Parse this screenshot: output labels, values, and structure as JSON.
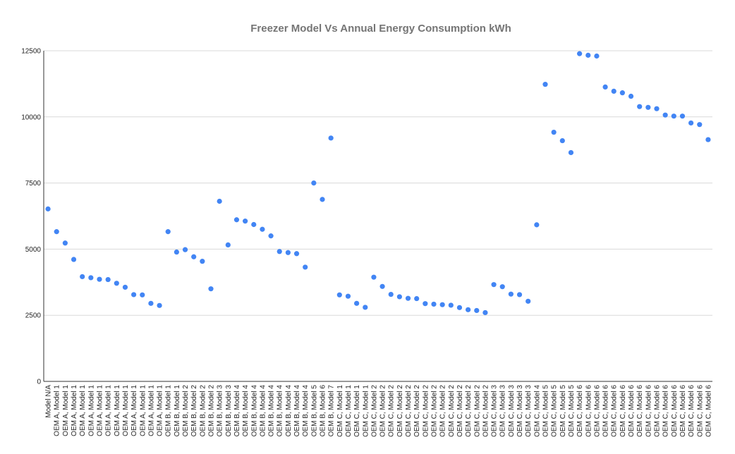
{
  "chart_data": {
    "type": "scatter",
    "title": "Freezer Model Vs Annual Energy Consumption kWh",
    "xlabel": "",
    "ylabel": "",
    "ylim": [
      0,
      12500
    ],
    "yticks": [
      0,
      2500,
      5000,
      7500,
      10000,
      12500
    ],
    "grid": true,
    "legend": "none",
    "point_color": "#4285f4",
    "categories": [
      "Model N/A",
      "OEM A, Model 1",
      "OEM A, Model 1",
      "OEM A, Model 1",
      "OEM A, Model 1",
      "OEM A, Model 1",
      "OEM A, Model 1",
      "OEM A, Model 1",
      "OEM A, Model 1",
      "OEM A, Model 1",
      "OEM A, Model 1",
      "OEM A, Model 1",
      "OEM A, Model 1",
      "OEM A, Model 1",
      "OEM B, Model 1",
      "OEM B, Model 1",
      "OEM B, Model 2",
      "OEM B, Model 2",
      "OEM B, Model 2",
      "OEM B, Model 2",
      "OEM B, Model 3",
      "OEM B, Model 3",
      "OEM B, Model 4",
      "OEM B, Model 4",
      "OEM B, Model 4",
      "OEM B, Model 4",
      "OEM B, Model 4",
      "OEM B, Model 4",
      "OEM B, Model 4",
      "OEM B, Model 4",
      "OEM B, Model 4",
      "OEM B, Model 5",
      "OEM B, Model 6",
      "OEM B, Model 7",
      "OEM C, Model 1",
      "OEM C, Model 1",
      "OEM C, Model 1",
      "OEM C, Model 1",
      "OEM C, Model 2",
      "OEM C, Model 2",
      "OEM C, Model 2",
      "OEM C, Model 2",
      "OEM C, Model 2",
      "OEM C, Model 2",
      "OEM C, Model 2",
      "OEM C, Model 2",
      "OEM C, Model 2",
      "OEM C, Model 2",
      "OEM C, Model 2",
      "OEM C, Model 2",
      "OEM C, Model 2",
      "OEM C, Model 2",
      "OEM C, Model 3",
      "OEM C, Model 3",
      "OEM C, Model 3",
      "OEM C, Model 3",
      "OEM C, Model 3",
      "OEM C, Model 4",
      "OEM C, Model 5",
      "OEM C, Model 5",
      "OEM C, Model 5",
      "OEM C, Model 5",
      "OEM C, Model 6",
      "OEM C, Model 6",
      "OEM C, Model 6",
      "OEM C, Model 6",
      "OEM C, Model 6",
      "OEM C, Model 6",
      "OEM C, Model 6",
      "OEM C, Model 6",
      "OEM C, Model 6",
      "OEM C, Model 6",
      "OEM C, Model 6",
      "OEM C, Model 6",
      "OEM C, Model 6",
      "OEM C, Model 6",
      "OEM C, Model 6",
      "OEM C, Model 6"
    ],
    "values": [
      6520,
      5660,
      5230,
      4610,
      3960,
      3920,
      3860,
      3850,
      3710,
      3560,
      3280,
      3270,
      2950,
      2870,
      5660,
      4890,
      4980,
      4710,
      4540,
      3500,
      6810,
      5160,
      6110,
      6060,
      5930,
      5750,
      5500,
      4910,
      4870,
      4830,
      4320,
      7500,
      6880,
      9200,
      3270,
      3220,
      2950,
      2800,
      3940,
      3590,
      3290,
      3200,
      3140,
      3130,
      2940,
      2920,
      2900,
      2880,
      2790,
      2710,
      2680,
      2600,
      3660,
      3580,
      3300,
      3280,
      3030,
      5920,
      11230,
      9420,
      9100,
      8650,
      12390,
      12330,
      12300,
      11130,
      10970,
      10910,
      10780,
      10390,
      10360,
      10310,
      10070,
      10030,
      10030,
      9770,
      9710,
      9140
    ]
  }
}
